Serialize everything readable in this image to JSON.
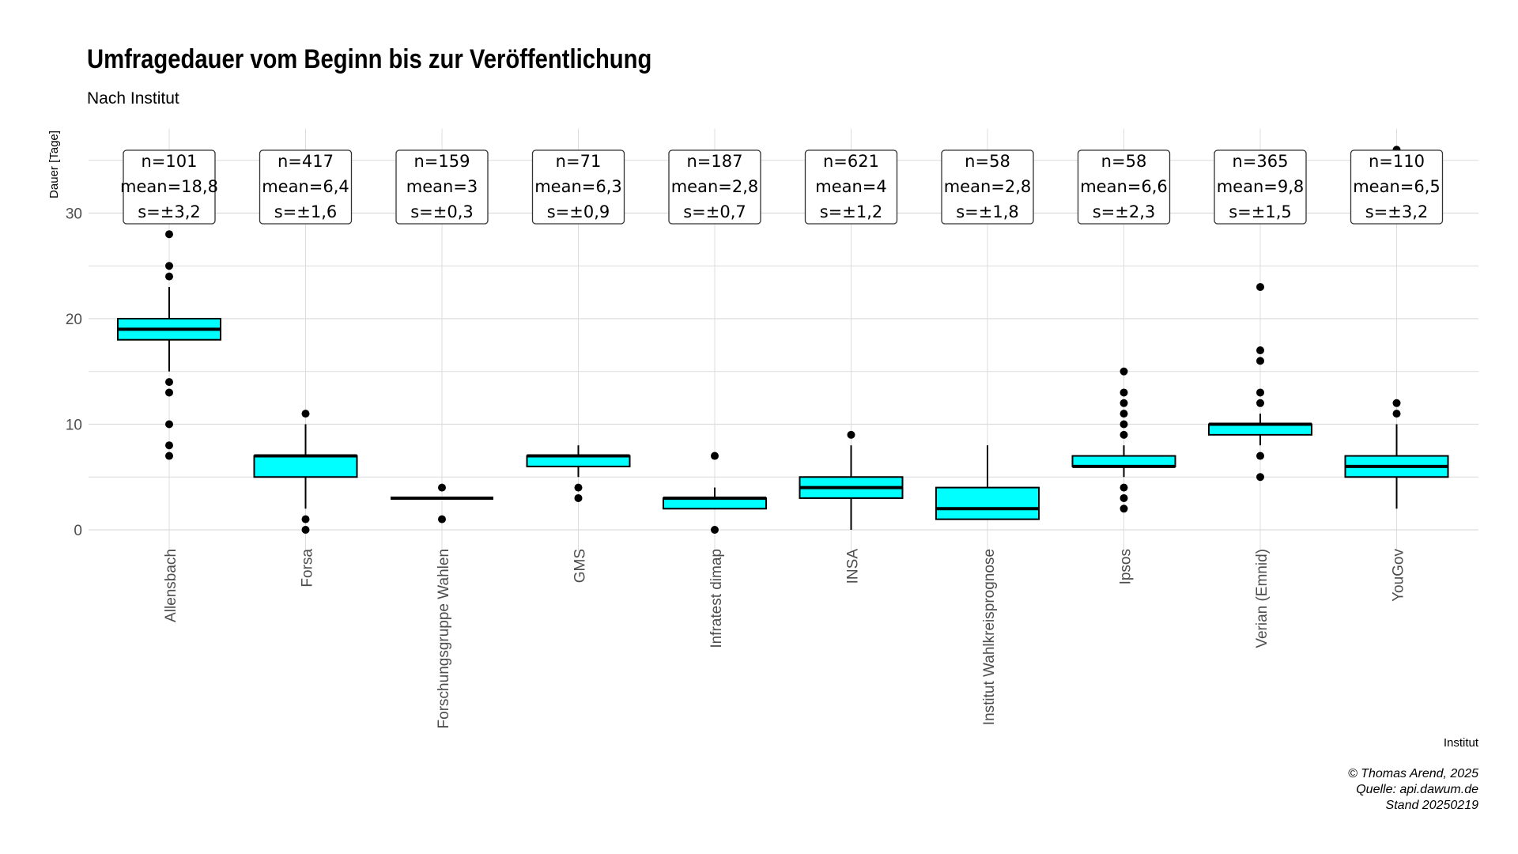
{
  "title": "Umfragedauer vom Beginn bis zur Veröffentlichung",
  "subtitle": "Nach Institut",
  "caption": [
    "© Thomas Arend, 2025",
    "Quelle: api.dawum.de",
    "Stand 20250219"
  ],
  "colors": {
    "box_fill": "#00FFFF",
    "grid": "#dcdcdc",
    "text": "#000000"
  },
  "chart_data": {
    "type": "boxplot",
    "xlabel": "Institut",
    "ylabel": "Dauer [Tage]",
    "ylim": [
      -2,
      38
    ],
    "yticks": [
      0,
      10,
      20,
      30
    ],
    "grid": true,
    "institutes": [
      {
        "name": "Allensbach",
        "n": "n=101",
        "mean": "mean=18,8",
        "s": "s=±3,2",
        "q1": 18,
        "median": 19,
        "q3": 20,
        "whisker_low": 15,
        "whisker_high": 23,
        "outliers": [
          7,
          8,
          10,
          13,
          14,
          24,
          25,
          28
        ]
      },
      {
        "name": "Forsa",
        "n": "n=417",
        "mean": "mean=6,4",
        "s": "s=±1,6",
        "q1": 5,
        "median": 7,
        "q3": 7,
        "whisker_low": 2,
        "whisker_high": 10,
        "outliers": [
          0,
          1,
          11
        ]
      },
      {
        "name": "Forschungsgruppe Wahlen",
        "n": "n=159",
        "mean": "mean=3",
        "s": "s=±0,3",
        "q1": 3,
        "median": 3,
        "q3": 3,
        "whisker_low": 3,
        "whisker_high": 3,
        "outliers": [
          1,
          4
        ]
      },
      {
        "name": "GMS",
        "n": "n=71",
        "mean": "mean=6,3",
        "s": "s=±0,9",
        "q1": 6,
        "median": 7,
        "q3": 7,
        "whisker_low": 5,
        "whisker_high": 8,
        "outliers": [
          3,
          4
        ]
      },
      {
        "name": "Infratest dimap",
        "n": "n=187",
        "mean": "mean=2,8",
        "s": "s=±0,7",
        "q1": 2,
        "median": 3,
        "q3": 3,
        "whisker_low": 2,
        "whisker_high": 4,
        "outliers": [
          0,
          7
        ]
      },
      {
        "name": "INSA",
        "n": "n=621",
        "mean": "mean=4",
        "s": "s=±1,2",
        "q1": 3,
        "median": 4,
        "q3": 5,
        "whisker_low": 0,
        "whisker_high": 8,
        "outliers": [
          9
        ]
      },
      {
        "name": "Institut Wahlkreisprognose",
        "n": "n=58",
        "mean": "mean=2,8",
        "s": "s=±1,8",
        "q1": 1,
        "median": 2,
        "q3": 4,
        "whisker_low": 1,
        "whisker_high": 8,
        "outliers": []
      },
      {
        "name": "Ipsos",
        "n": "n=58",
        "mean": "mean=6,6",
        "s": "s=±2,3",
        "q1": 6,
        "median": 6,
        "q3": 7,
        "whisker_low": 5,
        "whisker_high": 8,
        "outliers": [
          2,
          3,
          4,
          9,
          10,
          11,
          12,
          13,
          15
        ]
      },
      {
        "name": "Verian (Emnid)",
        "n": "n=365",
        "mean": "mean=9,8",
        "s": "s=±1,5",
        "q1": 9,
        "median": 10,
        "q3": 10,
        "whisker_low": 8,
        "whisker_high": 11,
        "outliers": [
          5,
          7,
          12,
          13,
          16,
          17,
          23
        ]
      },
      {
        "name": "YouGov",
        "n": "n=110",
        "mean": "mean=6,5",
        "s": "s=±3,2",
        "q1": 5,
        "median": 6,
        "q3": 7,
        "whisker_low": 2,
        "whisker_high": 10,
        "outliers": [
          11,
          12,
          36
        ]
      }
    ]
  }
}
